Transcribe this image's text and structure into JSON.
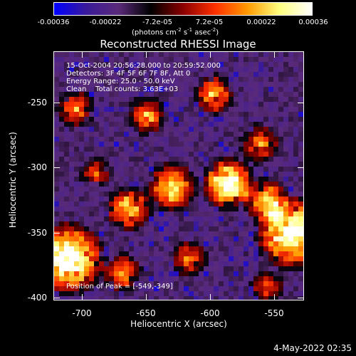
{
  "colorbar": {
    "ticks": [
      "-0.00036",
      "-0.00022",
      "-7.2e-05",
      "7.2e-05",
      "0.00022",
      "0.00036"
    ],
    "units_prefix": "(photons cm",
    "units_sup1": "-2",
    "units_mid1": " s",
    "units_sup2": "-1",
    "units_mid2": " asec",
    "units_sup3": "-2",
    "units_suffix": ")",
    "colors": [
      "#0000ff",
      "#3a1a9a",
      "#5a2a7a",
      "#000000",
      "#8a0000",
      "#ff3000",
      "#ff9a00",
      "#ffff80",
      "#ffffff"
    ]
  },
  "title": "Reconstructed RHESSI Image",
  "info": {
    "line1": "15-Oct-2004 20:56:28.000 to 20:59:52.000",
    "line2": "Detectors: 3F 4F 5F 6F 7F 8F, Att 0",
    "line3": "Energy Range: 25.0 - 50.0 keV",
    "line4": "Clean    Total counts: 3.63E+03",
    "peak": "Position of Peak = [-549,-349]"
  },
  "axes": {
    "xlabel": "Heliocentric X (arcsec)",
    "ylabel": "Heliocentric Y (arcsec)",
    "xticks": [
      "-700",
      "-650",
      "-600",
      "-550"
    ],
    "yticks": [
      "-250",
      "-300",
      "-350",
      "-400"
    ]
  },
  "datestamp": "4-May-2022 02:35"
}
